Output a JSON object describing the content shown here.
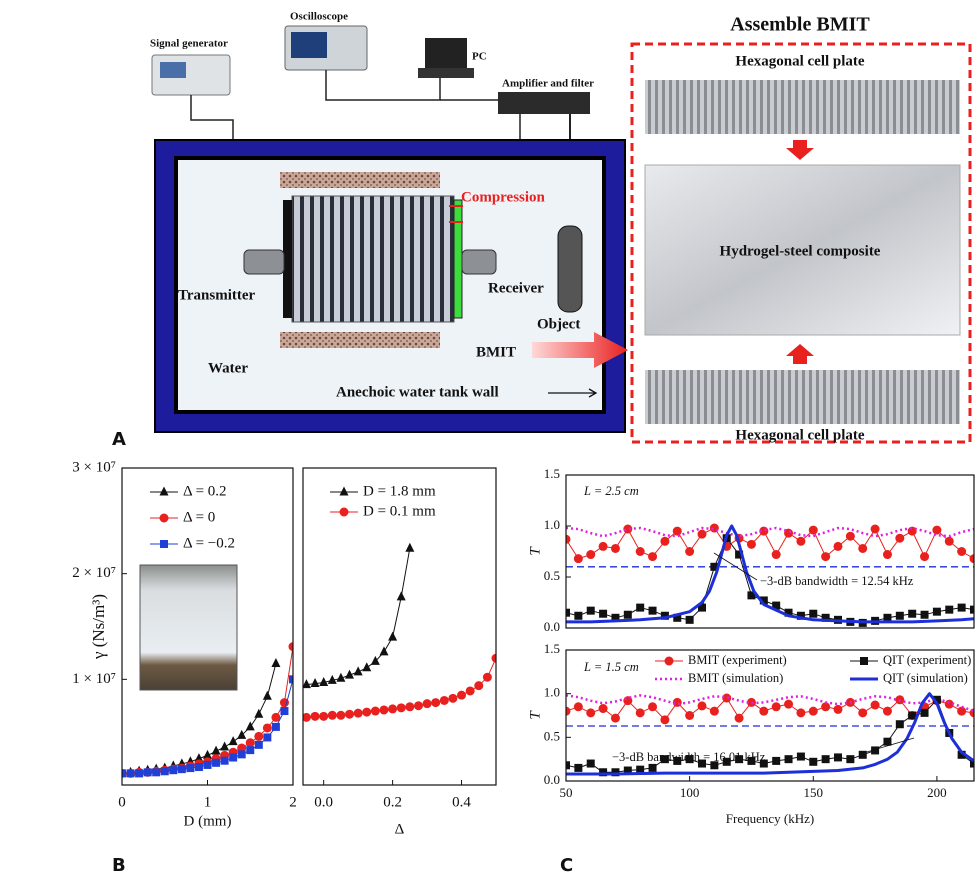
{
  "panel_labels": [
    "A",
    "B",
    "C"
  ],
  "diagram": {
    "title": "Assemble BMIT",
    "instruments": {
      "signal_generator": "Signal generator",
      "oscilloscope": "Oscilloscope",
      "pc": "PC",
      "amplifier": "Amplifier and filter"
    },
    "tank": {
      "compression": "Compression",
      "transmitter": "Transmitter",
      "receiver": "Receiver",
      "object": "Object",
      "water": "Water",
      "bmit": "BMIT",
      "wall": "Anechoic water tank wall"
    },
    "assembly": {
      "top_plate": "Hexagonal cell plate",
      "composite": "Hydrogel-steel composite",
      "bottom_plate": "Hexagonal cell plate"
    }
  },
  "chart_data": [
    {
      "type": "line",
      "xlabel": "D (mm)",
      "ylabel": "γ (Ns/m³)",
      "xlim": [
        0,
        2
      ],
      "xticks": [
        0,
        1,
        2
      ],
      "ylim": [
        0,
        30000000.0
      ],
      "yticks": [
        {
          "value": 10000000.0,
          "label": "1 × 10⁷"
        },
        {
          "value": 20000000.0,
          "label": "2 × 10⁷"
        },
        {
          "value": 30000000.0,
          "label": "3 × 10⁷"
        }
      ],
      "legend": "upper left",
      "series": [
        {
          "name": "Δ = 0.2",
          "color": "#111111",
          "marker": "triangle",
          "line": "solid",
          "line_width": 1,
          "x": [
            0,
            0.1,
            0.2,
            0.3,
            0.4,
            0.5,
            0.6,
            0.7,
            0.8,
            0.9,
            1.0,
            1.1,
            1.2,
            1.3,
            1.4,
            1.5,
            1.6,
            1.7,
            1.8
          ],
          "values": [
            1100000.0,
            1200000.0,
            1300000.0,
            1400000.0,
            1500000.0,
            1600000.0,
            1800000.0,
            2000000.0,
            2200000.0,
            2500000.0,
            2800000.0,
            3200000.0,
            3600000.0,
            4100000.0,
            4700000.0,
            5500000.0,
            6700000.0,
            8400000.0,
            11500000.0
          ]
        },
        {
          "name": "Δ = 0",
          "color": "#e8211f",
          "marker": "circle",
          "line": "solid",
          "line_width": 1,
          "x": [
            0,
            0.1,
            0.2,
            0.3,
            0.4,
            0.5,
            0.6,
            0.7,
            0.8,
            0.9,
            1.0,
            1.1,
            1.2,
            1.3,
            1.4,
            1.5,
            1.6,
            1.7,
            1.8,
            1.9,
            2.0
          ],
          "values": [
            1100000.0,
            1100000.0,
            1200000.0,
            1200000.0,
            1300000.0,
            1400000.0,
            1500000.0,
            1600000.0,
            1800000.0,
            2000000.0,
            2200000.0,
            2500000.0,
            2800000.0,
            3100000.0,
            3500000.0,
            4000000.0,
            4600000.0,
            5400000.0,
            6400000.0,
            7800000.0,
            13100000.0
          ]
        },
        {
          "name": "Δ = −0.2",
          "color": "#1f3fd6",
          "marker": "square",
          "line": "solid",
          "line_width": 1,
          "x": [
            0,
            0.1,
            0.2,
            0.3,
            0.4,
            0.5,
            0.6,
            0.7,
            0.8,
            0.9,
            1.0,
            1.1,
            1.2,
            1.3,
            1.4,
            1.5,
            1.6,
            1.7,
            1.8,
            1.9,
            2.0
          ],
          "values": [
            1100000.0,
            1100000.0,
            1100000.0,
            1200000.0,
            1200000.0,
            1300000.0,
            1400000.0,
            1500000.0,
            1600000.0,
            1700000.0,
            1900000.0,
            2100000.0,
            2300000.0,
            2600000.0,
            2900000.0,
            3300000.0,
            3800000.0,
            4500000.0,
            5500000.0,
            7000000.0,
            10000000.0
          ]
        }
      ]
    },
    {
      "type": "line",
      "xlabel": "Δ",
      "xlim": [
        -0.06,
        0.5
      ],
      "xticks": [
        {
          "value": 0,
          "label": "0.0"
        },
        0.2,
        0.4
      ],
      "ylim": [
        0,
        30000000.0
      ],
      "legend": "upper left",
      "series": [
        {
          "name": "D = 1.8 mm",
          "color": "#111111",
          "marker": "triangle",
          "line": "solid",
          "line_width": 1,
          "x": [
            -0.05,
            -0.025,
            0,
            0.025,
            0.05,
            0.075,
            0.1,
            0.125,
            0.15,
            0.175,
            0.2,
            0.225,
            0.25
          ],
          "values": [
            9500000.0,
            9600000.0,
            9700000.0,
            9900000.0,
            10100000.0,
            10400000.0,
            10700000.0,
            11100000.0,
            11700000.0,
            12600000.0,
            14000000.0,
            17800000.0,
            22400000.0
          ]
        },
        {
          "name": "D = 0.1 mm",
          "color": "#e8211f",
          "marker": "circle",
          "line": "solid",
          "line_width": 1,
          "x": [
            -0.05,
            -0.025,
            0,
            0.025,
            0.05,
            0.075,
            0.1,
            0.125,
            0.15,
            0.175,
            0.2,
            0.225,
            0.25,
            0.275,
            0.3,
            0.325,
            0.35,
            0.375,
            0.4,
            0.425,
            0.45,
            0.475,
            0.5
          ],
          "values": [
            6400000.0,
            6500000.0,
            6500000.0,
            6600000.0,
            6600000.0,
            6700000.0,
            6800000.0,
            6900000.0,
            7000000.0,
            7100000.0,
            7200000.0,
            7300000.0,
            7400000.0,
            7500000.0,
            7700000.0,
            7800000.0,
            8000000.0,
            8200000.0,
            8500000.0,
            8900000.0,
            9400000.0,
            10200000.0,
            12000000.0
          ]
        }
      ]
    },
    {
      "type": "line",
      "ylabel": "T",
      "xlim": [
        50,
        215
      ],
      "ylim": [
        0,
        1.5
      ],
      "yticks": [
        {
          "value": 0,
          "label": "0.0"
        },
        0.5,
        {
          "value": 1,
          "label": "1.0"
        },
        1.5
      ],
      "reference_line": 0.6,
      "annotations": [
        "L = 2.5 cm",
        "−3-dB bandwidth = 12.54 kHz"
      ],
      "series": [
        {
          "color": "#e8211f",
          "marker": "circle",
          "line": "solid",
          "line_width": 1,
          "x": [
            50,
            55,
            60,
            65,
            70,
            75,
            80,
            85,
            90,
            95,
            100,
            105,
            110,
            115,
            120,
            125,
            130,
            135,
            140,
            145,
            150,
            155,
            160,
            165,
            170,
            175,
            180,
            185,
            190,
            195,
            200,
            205,
            210,
            215
          ],
          "values": [
            0.87,
            0.68,
            0.72,
            0.8,
            0.78,
            0.97,
            0.75,
            0.7,
            0.85,
            0.95,
            0.75,
            0.92,
            0.98,
            0.8,
            0.88,
            0.82,
            0.95,
            0.72,
            0.93,
            0.85,
            0.96,
            0.7,
            0.8,
            0.9,
            0.78,
            0.97,
            0.72,
            0.88,
            0.95,
            0.7,
            0.96,
            0.85,
            0.75,
            0.68
          ]
        },
        {
          "color": "#e020e0",
          "line": "dotted",
          "line_width": 2.5,
          "x": [
            50,
            55,
            60,
            65,
            70,
            75,
            80,
            85,
            90,
            95,
            100,
            105,
            110,
            115,
            120,
            125,
            130,
            135,
            140,
            145,
            150,
            155,
            160,
            165,
            170,
            175,
            180,
            185,
            190,
            195,
            200,
            205,
            210,
            215
          ],
          "values": [
            0.98,
            0.97,
            0.93,
            0.9,
            0.93,
            0.97,
            0.98,
            0.95,
            0.91,
            0.9,
            0.94,
            0.98,
            0.97,
            0.93,
            0.9,
            0.92,
            0.96,
            0.98,
            0.95,
            0.91,
            0.9,
            0.94,
            0.98,
            0.97,
            0.93,
            0.9,
            0.92,
            0.96,
            0.98,
            0.95,
            0.91,
            0.9,
            0.94,
            0.97
          ]
        },
        {
          "color": "#111111",
          "marker": "square",
          "line": "solid",
          "line_width": 1,
          "x": [
            50,
            55,
            60,
            65,
            70,
            75,
            80,
            85,
            90,
            95,
            100,
            105,
            110,
            115,
            120,
            125,
            130,
            135,
            140,
            145,
            150,
            155,
            160,
            165,
            170,
            175,
            180,
            185,
            190,
            195,
            200,
            205,
            210,
            215
          ],
          "values": [
            0.15,
            0.12,
            0.17,
            0.14,
            0.1,
            0.13,
            0.2,
            0.17,
            0.12,
            0.1,
            0.08,
            0.2,
            0.6,
            0.88,
            0.72,
            0.32,
            0.27,
            0.22,
            0.15,
            0.12,
            0.14,
            0.1,
            0.08,
            0.06,
            0.05,
            0.07,
            0.1,
            0.12,
            0.14,
            0.13,
            0.16,
            0.18,
            0.2,
            0.18
          ]
        },
        {
          "color": "#1c2fd9",
          "line": "solid",
          "line_width": 3,
          "x": [
            50,
            60,
            70,
            80,
            90,
            100,
            105,
            108,
            111,
            113,
            115,
            117,
            119,
            121,
            123,
            126,
            130,
            140,
            150,
            160,
            170,
            180,
            190,
            200,
            210,
            215
          ],
          "values": [
            0.06,
            0.06,
            0.07,
            0.08,
            0.1,
            0.16,
            0.25,
            0.36,
            0.55,
            0.73,
            0.91,
            1.0,
            0.91,
            0.73,
            0.55,
            0.36,
            0.23,
            0.12,
            0.08,
            0.07,
            0.06,
            0.06,
            0.06,
            0.07,
            0.08,
            0.09
          ]
        }
      ]
    },
    {
      "type": "line",
      "ylabel": "T",
      "xlabel": "Frequency (kHz)",
      "xlim": [
        50,
        215
      ],
      "xticks": [
        50,
        100,
        150,
        200
      ],
      "ylim": [
        0,
        1.5
      ],
      "yticks": [
        {
          "value": 0,
          "label": "0.0"
        },
        0.5,
        {
          "value": 1,
          "label": "1.0"
        },
        1.5
      ],
      "reference_line": 0.63,
      "legend": "upper right",
      "annotations": [
        "L = 1.5 cm",
        "−3-dB bandwidth = 16.01 kHz"
      ],
      "series": [
        {
          "name": "BMIT  (experiment)",
          "color": "#e8211f",
          "marker": "circle",
          "line": "solid",
          "line_width": 1,
          "x": [
            50,
            55,
            60,
            65,
            70,
            75,
            80,
            85,
            90,
            95,
            100,
            105,
            110,
            115,
            120,
            125,
            130,
            135,
            140,
            145,
            150,
            155,
            160,
            165,
            170,
            175,
            180,
            185,
            190,
            195,
            200,
            205,
            210,
            215
          ],
          "values": [
            0.8,
            0.85,
            0.78,
            0.83,
            0.72,
            0.92,
            0.78,
            0.85,
            0.7,
            0.9,
            0.75,
            0.86,
            0.8,
            0.95,
            0.72,
            0.9,
            0.8,
            0.85,
            0.88,
            0.78,
            0.8,
            0.85,
            0.82,
            0.9,
            0.78,
            0.87,
            0.8,
            0.93,
            0.75,
            0.85,
            0.92,
            0.88,
            0.8,
            0.78
          ]
        },
        {
          "name": "BMIT  (simulation)",
          "color": "#e020e0",
          "line": "dotted",
          "line_width": 2.5,
          "x": [
            50,
            55,
            60,
            65,
            70,
            75,
            80,
            85,
            90,
            95,
            100,
            105,
            110,
            115,
            120,
            125,
            130,
            135,
            140,
            145,
            150,
            155,
            160,
            165,
            170,
            175,
            180,
            185,
            190,
            195,
            200,
            205,
            210,
            215
          ],
          "values": [
            0.98,
            0.96,
            0.92,
            0.89,
            0.91,
            0.95,
            0.98,
            0.96,
            0.92,
            0.88,
            0.9,
            0.94,
            0.97,
            0.96,
            0.92,
            0.89,
            0.9,
            0.93,
            0.96,
            0.97,
            0.94,
            0.9,
            0.88,
            0.9,
            0.94,
            0.97,
            0.96,
            0.92,
            0.89,
            0.9,
            0.94,
            0.9,
            0.85,
            0.8
          ]
        },
        {
          "name": "QIT (experiment)",
          "color": "#111111",
          "marker": "square",
          "line": "solid",
          "line_width": 1,
          "x": [
            50,
            55,
            60,
            65,
            70,
            75,
            80,
            85,
            90,
            95,
            100,
            105,
            110,
            115,
            120,
            125,
            130,
            135,
            140,
            145,
            150,
            155,
            160,
            165,
            170,
            175,
            180,
            185,
            190,
            195,
            200,
            205,
            210,
            215
          ],
          "values": [
            0.18,
            0.15,
            0.2,
            0.1,
            0.1,
            0.12,
            0.13,
            0.15,
            0.25,
            0.23,
            0.25,
            0.2,
            0.18,
            0.22,
            0.25,
            0.23,
            0.2,
            0.23,
            0.25,
            0.28,
            0.22,
            0.25,
            0.27,
            0.25,
            0.3,
            0.35,
            0.45,
            0.65,
            0.75,
            0.78,
            0.93,
            0.55,
            0.3,
            0.2
          ]
        },
        {
          "name": "QIT (simulation)",
          "color": "#1c2fd9",
          "line": "solid",
          "line_width": 3,
          "x": [
            50,
            70,
            90,
            110,
            130,
            150,
            160,
            170,
            175,
            180,
            184,
            188,
            191,
            194,
            197,
            200,
            203,
            206,
            210,
            215
          ],
          "values": [
            0.08,
            0.08,
            0.09,
            0.09,
            0.09,
            0.11,
            0.12,
            0.15,
            0.19,
            0.25,
            0.33,
            0.49,
            0.67,
            0.89,
            1.0,
            0.89,
            0.67,
            0.49,
            0.33,
            0.23
          ]
        }
      ]
    }
  ]
}
